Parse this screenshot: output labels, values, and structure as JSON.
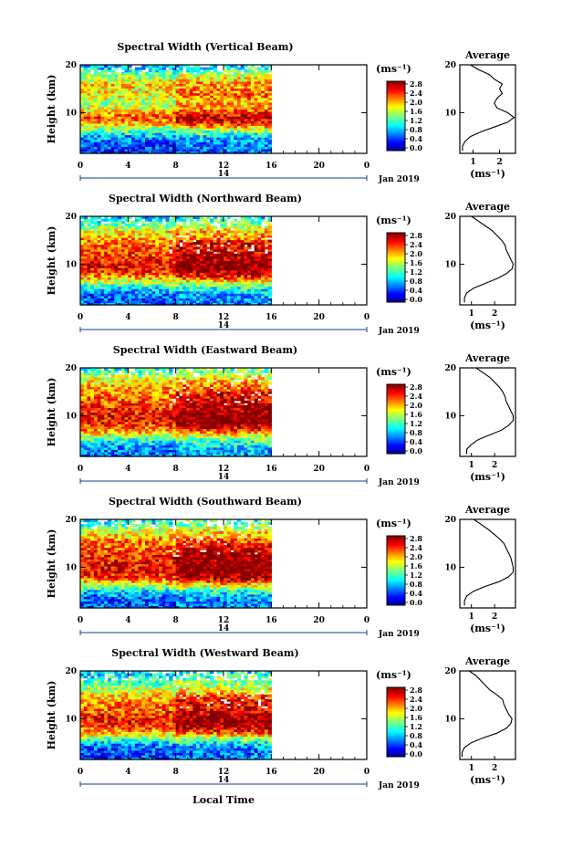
{
  "figure": {
    "xlabel": "Local Time",
    "date_label": "Jan 2019",
    "day_label": "14",
    "colorbar_unit": "(ms⁻¹)",
    "colorbar_ticks": [
      "2.8",
      "2.4",
      "2.0",
      "1.6",
      "1.2",
      "0.8",
      "0.4",
      "0.0"
    ],
    "profile_title": "Average",
    "profile_xlabel": "(ms⁻¹)",
    "height_label": "Height (km)"
  },
  "chart_data": [
    {
      "type": "heatmap",
      "title": "Spectral Width (Vertical Beam)",
      "xlabel": "",
      "ylabel": "Height (km)",
      "xticks": [
        "0",
        "4",
        "8",
        "12",
        "16",
        "20",
        "0"
      ],
      "xlim": [
        0,
        24
      ],
      "data_xlim": [
        0,
        16
      ],
      "yticks": [
        "20",
        "10"
      ],
      "ylim": [
        1.5,
        20
      ],
      "zlim": [
        0,
        3.0
      ],
      "colorscale": "jet",
      "profile": {
        "title": "Average",
        "xticks": [
          "1",
          "2"
        ],
        "xlim": [
          0.5,
          2.6
        ],
        "height": [
          2,
          3,
          4,
          5,
          6,
          7,
          8,
          9,
          10,
          11,
          12,
          13,
          14,
          15,
          16,
          17,
          18,
          19,
          20
        ],
        "width": [
          0.6,
          0.6,
          0.7,
          0.9,
          1.3,
          1.8,
          2.3,
          2.55,
          2.3,
          1.9,
          1.8,
          1.9,
          2.1,
          2.0,
          2.1,
          1.8,
          1.6,
          1.2,
          0.9
        ]
      }
    },
    {
      "type": "heatmap",
      "title": "Spectral Width (Northward Beam)",
      "xlabel": "",
      "ylabel": "Height (km)",
      "xticks": [
        "0",
        "4",
        "8",
        "12",
        "16",
        "20",
        "0"
      ],
      "xlim": [
        0,
        24
      ],
      "data_xlim": [
        0,
        16
      ],
      "yticks": [
        "20",
        "10"
      ],
      "ylim": [
        1.5,
        20
      ],
      "zlim": [
        0,
        3.0
      ],
      "colorscale": "jet",
      "profile": {
        "title": "Average",
        "xticks": [
          "1",
          "2"
        ],
        "xlim": [
          0.5,
          2.9
        ],
        "height": [
          2,
          3,
          4,
          5,
          6,
          7,
          8,
          9,
          10,
          11,
          12,
          13,
          14,
          15,
          16,
          17,
          18,
          19,
          20
        ],
        "width": [
          0.7,
          0.7,
          0.8,
          1.1,
          1.6,
          2.1,
          2.5,
          2.75,
          2.8,
          2.7,
          2.6,
          2.5,
          2.45,
          2.3,
          2.1,
          1.9,
          1.6,
          1.3,
          1.0
        ]
      }
    },
    {
      "type": "heatmap",
      "title": "Spectral Width (Eastward Beam)",
      "xlabel": "",
      "ylabel": "Height (km)",
      "xticks": [
        "0",
        "4",
        "8",
        "12",
        "16",
        "20",
        "0"
      ],
      "xlim": [
        0,
        24
      ],
      "data_xlim": [
        0,
        16
      ],
      "yticks": [
        "20",
        "10"
      ],
      "ylim": [
        1.5,
        20
      ],
      "zlim": [
        0,
        3.0
      ],
      "colorscale": "jet",
      "profile": {
        "title": "Average",
        "xticks": [
          "1",
          "2"
        ],
        "xlim": [
          0.5,
          2.9
        ],
        "height": [
          2,
          3,
          4,
          5,
          6,
          7,
          8,
          9,
          10,
          11,
          12,
          13,
          14,
          15,
          16,
          17,
          18,
          19,
          20
        ],
        "width": [
          0.8,
          0.8,
          1.0,
          1.3,
          1.8,
          2.3,
          2.6,
          2.8,
          2.8,
          2.7,
          2.6,
          2.5,
          2.45,
          2.35,
          2.2,
          2.0,
          1.8,
          1.5,
          1.2
        ]
      }
    },
    {
      "type": "heatmap",
      "title": "Spectral Width (Southward Beam)",
      "xlabel": "",
      "ylabel": "Height (km)",
      "xticks": [
        "0",
        "4",
        "8",
        "12",
        "16",
        "20",
        "0"
      ],
      "xlim": [
        0,
        24
      ],
      "data_xlim": [
        0,
        16
      ],
      "yticks": [
        "20",
        "10"
      ],
      "ylim": [
        1.5,
        20
      ],
      "zlim": [
        0,
        3.0
      ],
      "colorscale": "jet",
      "profile": {
        "title": "Average",
        "xticks": [
          "1",
          "2"
        ],
        "xlim": [
          0.5,
          2.9
        ],
        "height": [
          2,
          3,
          4,
          5,
          6,
          7,
          8,
          9,
          10,
          11,
          12,
          13,
          14,
          15,
          16,
          17,
          18,
          19,
          20
        ],
        "width": [
          0.7,
          0.7,
          0.8,
          1.1,
          1.6,
          2.2,
          2.6,
          2.8,
          2.8,
          2.75,
          2.7,
          2.6,
          2.5,
          2.4,
          2.2,
          1.95,
          1.7,
          1.4,
          1.1
        ]
      }
    },
    {
      "type": "heatmap",
      "title": "Spectral Width (Westward Beam)",
      "xlabel": "Local Time",
      "ylabel": "Height (km)",
      "xticks": [
        "0",
        "4",
        "8",
        "12",
        "16",
        "20",
        "0"
      ],
      "xlim": [
        0,
        24
      ],
      "data_xlim": [
        0,
        16
      ],
      "yticks": [
        "20",
        "10"
      ],
      "ylim": [
        1.5,
        20
      ],
      "zlim": [
        0,
        3.0
      ],
      "colorscale": "jet",
      "profile": {
        "title": "Average",
        "xticks": [
          "1",
          "2"
        ],
        "xlim": [
          0.5,
          2.9
        ],
        "height": [
          2,
          3,
          4,
          5,
          6,
          7,
          8,
          9,
          10,
          11,
          12,
          13,
          14,
          15,
          16,
          17,
          18,
          19,
          20
        ],
        "width": [
          0.6,
          0.6,
          0.7,
          1.0,
          1.5,
          2.1,
          2.5,
          2.7,
          2.75,
          2.6,
          2.5,
          2.4,
          2.35,
          2.1,
          1.8,
          1.6,
          1.4,
          1.2,
          0.9
        ]
      }
    }
  ]
}
